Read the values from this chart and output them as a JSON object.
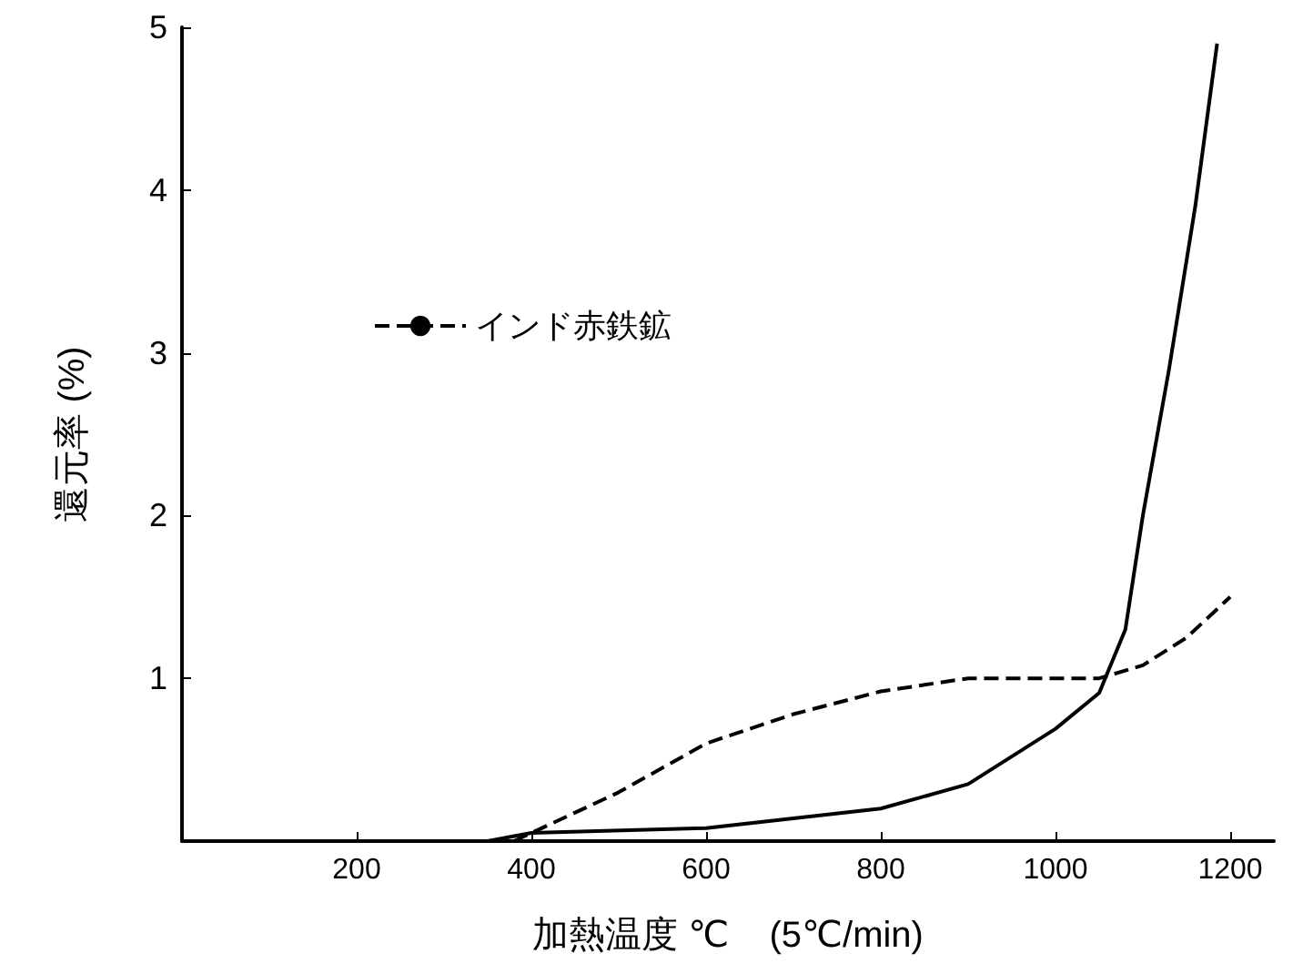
{
  "chart_data": {
    "type": "line",
    "xlabel": "加熱温度 ℃    (5℃/min)",
    "ylabel": "還元率 (%)",
    "xlim": [
      0,
      1250
    ],
    "ylim": [
      0,
      5
    ],
    "xticks": [
      200,
      400,
      600,
      800,
      1000,
      1200
    ],
    "yticks": [
      1,
      2,
      3,
      4,
      5
    ],
    "grid": false,
    "legend": "top left",
    "marker": "none",
    "series": [
      {
        "name": "インド赤鉄鉱",
        "color": "#000000",
        "line_style": "dashed",
        "x": [
          380,
          400,
          500,
          600,
          700,
          800,
          900,
          1000,
          1050,
          1100,
          1150,
          1200
        ],
        "values": [
          0,
          0.05,
          0.3,
          0.6,
          0.78,
          0.92,
          1.0,
          1.0,
          1.0,
          1.08,
          1.25,
          1.5
        ]
      },
      {
        "color": "#000000",
        "line_style": "solid",
        "x": [
          350,
          400,
          600,
          800,
          900,
          1000,
          1050,
          1080,
          1100,
          1130,
          1160,
          1185
        ],
        "values": [
          0,
          0.05,
          0.08,
          0.2,
          0.35,
          0.69,
          0.91,
          1.3,
          2.0,
          2.9,
          3.9,
          4.9
        ]
      }
    ]
  }
}
